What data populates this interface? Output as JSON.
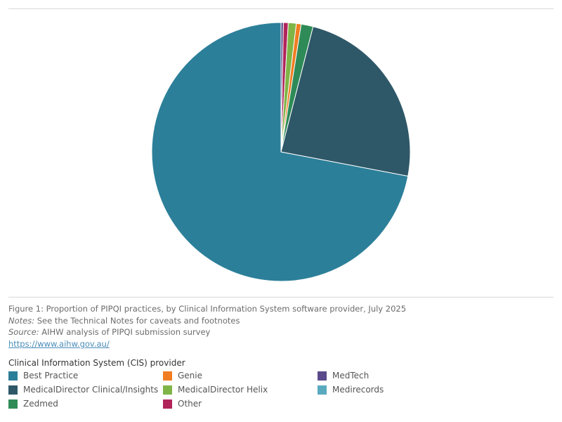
{
  "chart_data": {
    "type": "pie",
    "start_angle_deg": 0,
    "direction": "clockwise",
    "slices": [
      {
        "label": "MedTech",
        "value": 0.3,
        "color": "#5b4a8b"
      },
      {
        "label": "Other",
        "value": 0.6,
        "color": "#b0245a"
      },
      {
        "label": "MedicalDirector Helix",
        "value": 1.0,
        "color": "#7fb546"
      },
      {
        "label": "Genie",
        "value": 0.6,
        "color": "#f07d22"
      },
      {
        "label": "Zedmed",
        "value": 1.5,
        "color": "#2e8b57"
      },
      {
        "label": "MedicalDirector Clinical/Insights",
        "value": 24.0,
        "color": "#2e5868"
      },
      {
        "label": "Best Practice",
        "value": 72.0,
        "color": "#2c7f99"
      }
    ]
  },
  "caption": {
    "figure_line": "Figure 1: Proportion of PIPQI practices, by Clinical Information System software provider, July 2025",
    "notes_label": "Notes:",
    "notes_text": " See the Technical Notes for caveats and footnotes",
    "source_label": "Source:",
    "source_text": " AIHW analysis of PIPQI submission survey",
    "link": "https://www.aihw.gov.au/"
  },
  "legend": {
    "title": "Clinical Information System (CIS) provider",
    "items": [
      {
        "label": "Best Practice",
        "color": "#2c7f99"
      },
      {
        "label": "Genie",
        "color": "#f07d22"
      },
      {
        "label": "MedTech",
        "color": "#5b4a8b"
      },
      {
        "label": "MedicalDirector Clinical/Insights",
        "color": "#2e5868"
      },
      {
        "label": "MedicalDirector Helix",
        "color": "#7fb546"
      },
      {
        "label": "Medirecords",
        "color": "#5aaabf"
      },
      {
        "label": "Zedmed",
        "color": "#2e8b57"
      },
      {
        "label": "Other",
        "color": "#b0245a"
      }
    ]
  }
}
